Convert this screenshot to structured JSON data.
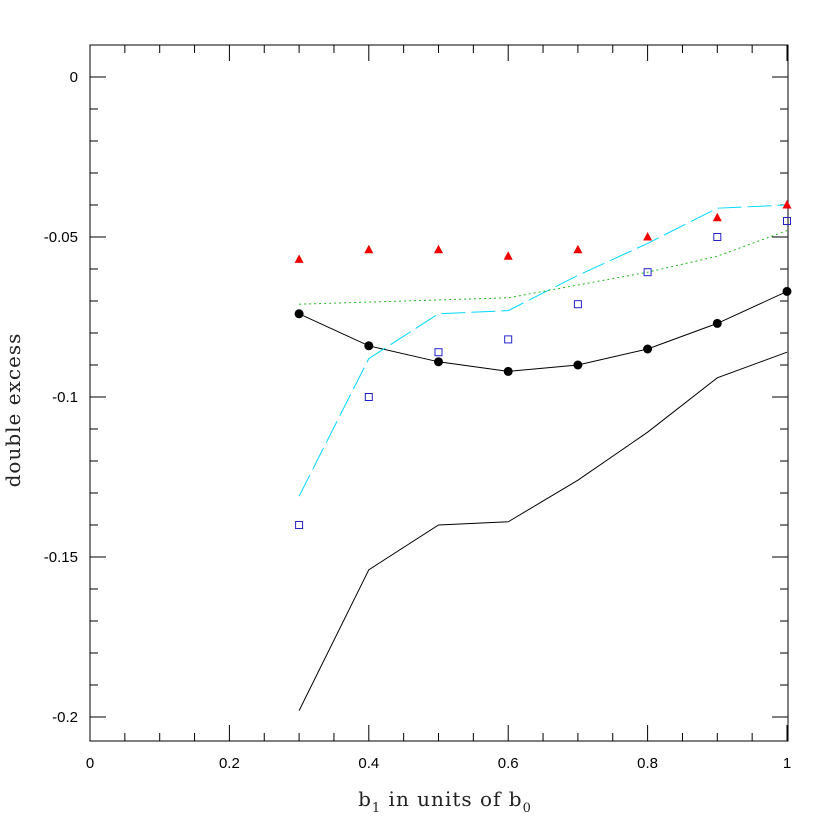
{
  "chart_data": {
    "type": "line",
    "xlabel": {
      "main": "b",
      "sub1": "1",
      "mid": " in units of b",
      "sub2": "0"
    },
    "ylabel": "double excess",
    "xlim": [
      0,
      1
    ],
    "ylim": [
      -0.21,
      0.01
    ],
    "xticks": [
      0,
      0.2,
      0.4,
      0.6,
      0.8,
      1
    ],
    "xtick_labels": [
      "0",
      "0.2",
      "0.4",
      "0.6",
      "0.8",
      "1"
    ],
    "yticks": [
      0,
      -0.05,
      -0.1,
      -0.15,
      -0.2
    ],
    "ytick_labels": [
      "0",
      "-0.05",
      "-0.1",
      "-0.15",
      "-0.2"
    ],
    "grid": false,
    "legend": "none",
    "series": [
      {
        "style": "solid-line-filled-circles",
        "color": "#000000",
        "x": [
          0.3,
          0.4,
          0.5,
          0.6,
          0.7,
          0.8,
          0.9,
          1.0
        ],
        "y": [
          -0.074,
          -0.084,
          -0.089,
          -0.092,
          -0.09,
          -0.085,
          -0.077,
          -0.067
        ]
      },
      {
        "style": "solid-line",
        "color": "#000000",
        "x": [
          0.3,
          0.4,
          0.5,
          0.6,
          0.7,
          0.8,
          0.9,
          1.0
        ],
        "y": [
          -0.198,
          -0.154,
          -0.14,
          -0.139,
          -0.126,
          -0.111,
          -0.094,
          -0.086
        ]
      },
      {
        "style": "long-dash-line",
        "color": "#00d8ff",
        "x": [
          0.3,
          0.4,
          0.5,
          0.6,
          0.7,
          0.8,
          0.9,
          1.0
        ],
        "y": [
          -0.131,
          -0.088,
          -0.074,
          -0.073,
          -0.062,
          -0.052,
          -0.041,
          -0.04
        ]
      },
      {
        "style": "dotted-line",
        "color": "#22bb22",
        "x": [
          0.3,
          0.6,
          0.8,
          0.9,
          1.0
        ],
        "y": [
          -0.071,
          -0.069,
          -0.061,
          -0.056,
          -0.048
        ]
      },
      {
        "style": "open-squares",
        "color": "#2222cc",
        "x": [
          0.3,
          0.4,
          0.5,
          0.6,
          0.7,
          0.8,
          0.9,
          1.0
        ],
        "y": [
          -0.14,
          -0.1,
          -0.086,
          -0.082,
          -0.071,
          -0.061,
          -0.05,
          -0.045
        ]
      },
      {
        "style": "filled-triangles",
        "color": "#ee0000",
        "x": [
          0.3,
          0.4,
          0.5,
          0.6,
          0.7,
          0.8,
          0.9,
          1.0
        ],
        "y": [
          -0.057,
          -0.054,
          -0.054,
          -0.056,
          -0.054,
          -0.05,
          -0.044,
          -0.04
        ]
      }
    ]
  }
}
